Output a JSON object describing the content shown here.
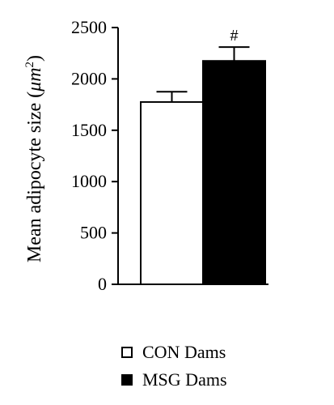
{
  "chart_data": {
    "type": "bar",
    "categories": [
      "CON Dams",
      "MSG Dams"
    ],
    "values": [
      1775,
      2175
    ],
    "errors": [
      100,
      135
    ],
    "colors": [
      "#ffffff",
      "#000000"
    ],
    "ylabel": "Mean adipocyte size (",
    "ylabel_unit": "μm",
    "ylabel_exp": "2",
    "ylabel_end": ")",
    "ylim": [
      0,
      2500
    ],
    "yticks": [
      0,
      500,
      1000,
      1500,
      2000,
      2500
    ],
    "annotations": [
      {
        "category": "MSG Dams",
        "text": "#"
      }
    ],
    "grid": false,
    "legend": {
      "position": "bottom",
      "entries": [
        {
          "label": "CON Dams",
          "color": "#ffffff"
        },
        {
          "label": "MSG Dams",
          "color": "#000000"
        }
      ]
    }
  }
}
